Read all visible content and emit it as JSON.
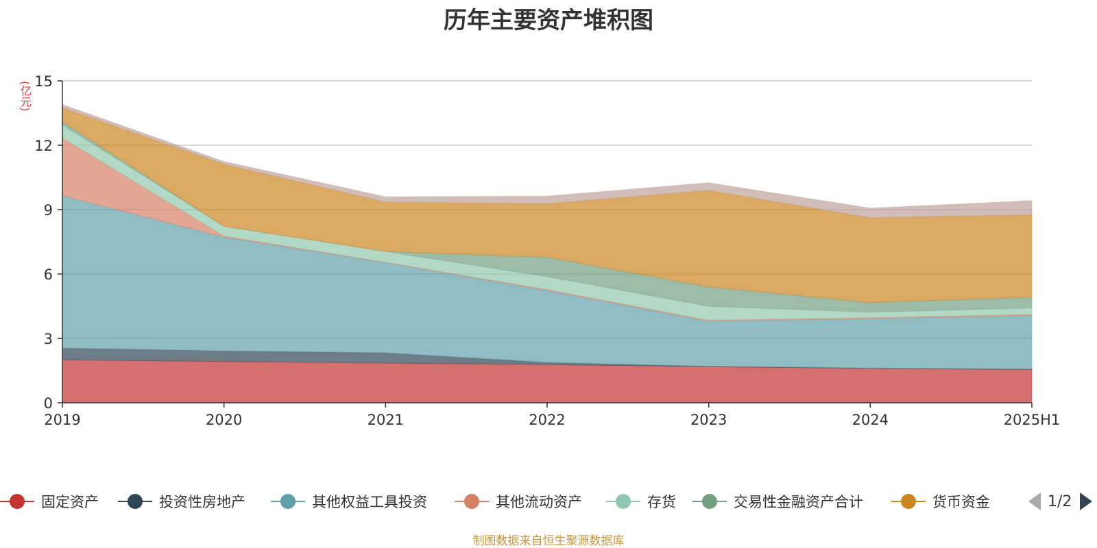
{
  "title": "历年主要资产堆积图",
  "source_note": "制图数据来自恒生聚源数据库",
  "pager": {
    "text": "1/2"
  },
  "chart_data": {
    "type": "area",
    "stacked": true,
    "title": "历年主要资产堆积图",
    "ylabel": "(亿元)",
    "xlabel": "",
    "categories": [
      "2019",
      "2020",
      "2021",
      "2022",
      "2023",
      "2024",
      "2025H1"
    ],
    "ylim": [
      0,
      15
    ],
    "yticks": [
      "0",
      "3",
      "6",
      "9",
      "12",
      "15"
    ],
    "grid": true,
    "legend_position": "bottom",
    "series": [
      {
        "name": "固定资产",
        "color": "#c23531",
        "values": [
          2.0,
          1.92,
          1.85,
          1.78,
          1.68,
          1.6,
          1.55
        ]
      },
      {
        "name": "投资性房地产",
        "color": "#2f4554",
        "values": [
          0.55,
          0.5,
          0.48,
          0.1,
          0.02,
          0.02,
          0.02
        ]
      },
      {
        "name": "其他权益工具投资",
        "color": "#61a0a8",
        "values": [
          7.1,
          5.3,
          4.2,
          3.35,
          2.1,
          2.3,
          2.5
        ]
      },
      {
        "name": "其他流动资产",
        "color": "#d48265",
        "values": [
          2.7,
          0.05,
          0.02,
          0.05,
          0.05,
          0.05,
          0.05
        ]
      },
      {
        "name": "存货",
        "color": "#91c7ae",
        "values": [
          0.6,
          0.45,
          0.5,
          0.6,
          0.65,
          0.25,
          0.3
        ]
      },
      {
        "name": "交易性金融资产合计",
        "color": "#749f83",
        "values": [
          0.15,
          0.0,
          0.0,
          0.9,
          0.9,
          0.45,
          0.5
        ]
      },
      {
        "name": "货币资金",
        "color": "#ca8622",
        "values": [
          0.65,
          2.9,
          2.3,
          2.5,
          4.5,
          3.95,
          3.85
        ]
      },
      {
        "name": "",
        "color": "#bda29a",
        "values": [
          0.15,
          0.12,
          0.25,
          0.35,
          0.35,
          0.45,
          0.65
        ]
      }
    ]
  }
}
